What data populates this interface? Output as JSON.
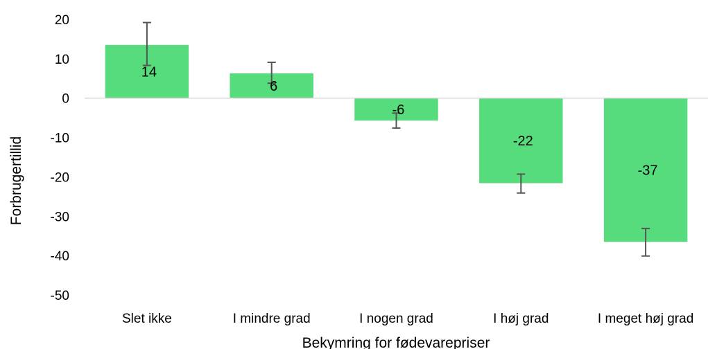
{
  "chart_data": {
    "type": "bar",
    "title": "",
    "xlabel": "Bekymring for fødevarepriser",
    "ylabel": "Forbrugertillid",
    "ylim": [
      -50,
      20
    ],
    "yticks": [
      20,
      10,
      0,
      -10,
      -20,
      -30,
      -40,
      -50
    ],
    "grid": false,
    "legend": "none",
    "categories": [
      "Slet ikke",
      "I mindre grad",
      "I nogen grad",
      "I høj grad",
      "I meget høj grad"
    ],
    "series": [
      {
        "values": [
          13.5,
          6.3,
          -5.7,
          -21.6,
          -36.5
        ],
        "error_low": [
          8.3,
          3.8,
          -7.6,
          -24.1,
          -40.1
        ],
        "error_high": [
          19.2,
          9.1,
          -3.8,
          -19.3,
          -33.1
        ],
        "data_labels": [
          "14",
          "6",
          "-6",
          "-22",
          "-37"
        ]
      }
    ],
    "colors": {
      "bar": "#56dc7c",
      "error_bar": "#555555",
      "axis_line": "#d9d9d9"
    }
  }
}
